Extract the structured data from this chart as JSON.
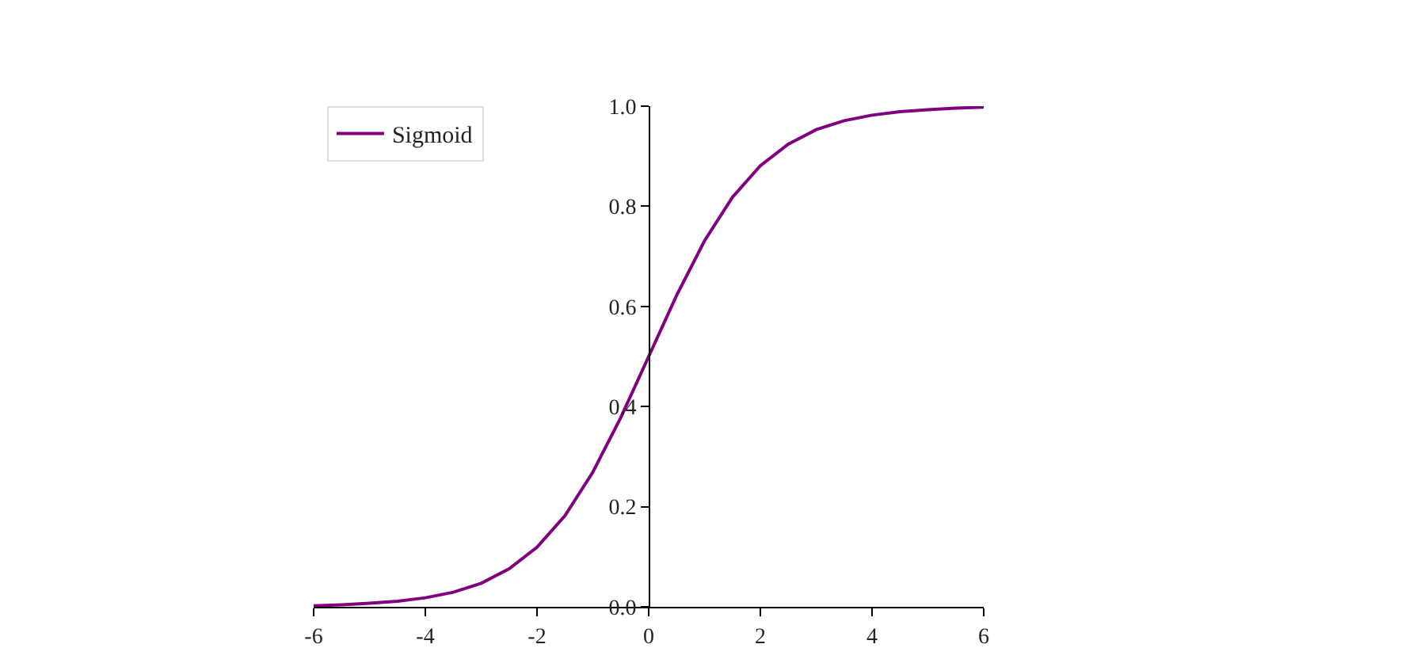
{
  "chart_data": {
    "type": "line",
    "x": [
      -6,
      -5.5,
      -5,
      -4.5,
      -4,
      -3.5,
      -3,
      -2.5,
      -2,
      -1.5,
      -1,
      -0.5,
      0,
      0.5,
      1,
      1.5,
      2,
      2.5,
      3,
      3.5,
      4,
      4.5,
      5,
      5.5,
      6
    ],
    "series": [
      {
        "name": "Sigmoid",
        "color": "#800080",
        "values": [
          0.002,
          0.004,
          0.007,
          0.011,
          0.018,
          0.029,
          0.047,
          0.076,
          0.119,
          0.182,
          0.269,
          0.378,
          0.5,
          0.622,
          0.731,
          0.818,
          0.881,
          0.924,
          0.953,
          0.971,
          0.982,
          0.989,
          0.993,
          0.996,
          0.998
        ]
      }
    ],
    "xlim": [
      -6,
      6
    ],
    "ylim": [
      0,
      1
    ],
    "xticks": [
      -6,
      -4,
      -2,
      0,
      2,
      4,
      6
    ],
    "yticks": [
      {
        "value": 0,
        "label": "0.0"
      },
      0.2,
      0.4,
      0.6,
      0.8,
      {
        "value": 1,
        "label": "1.0"
      }
    ],
    "grid": false,
    "legend": "top left",
    "line_style": "solid"
  }
}
